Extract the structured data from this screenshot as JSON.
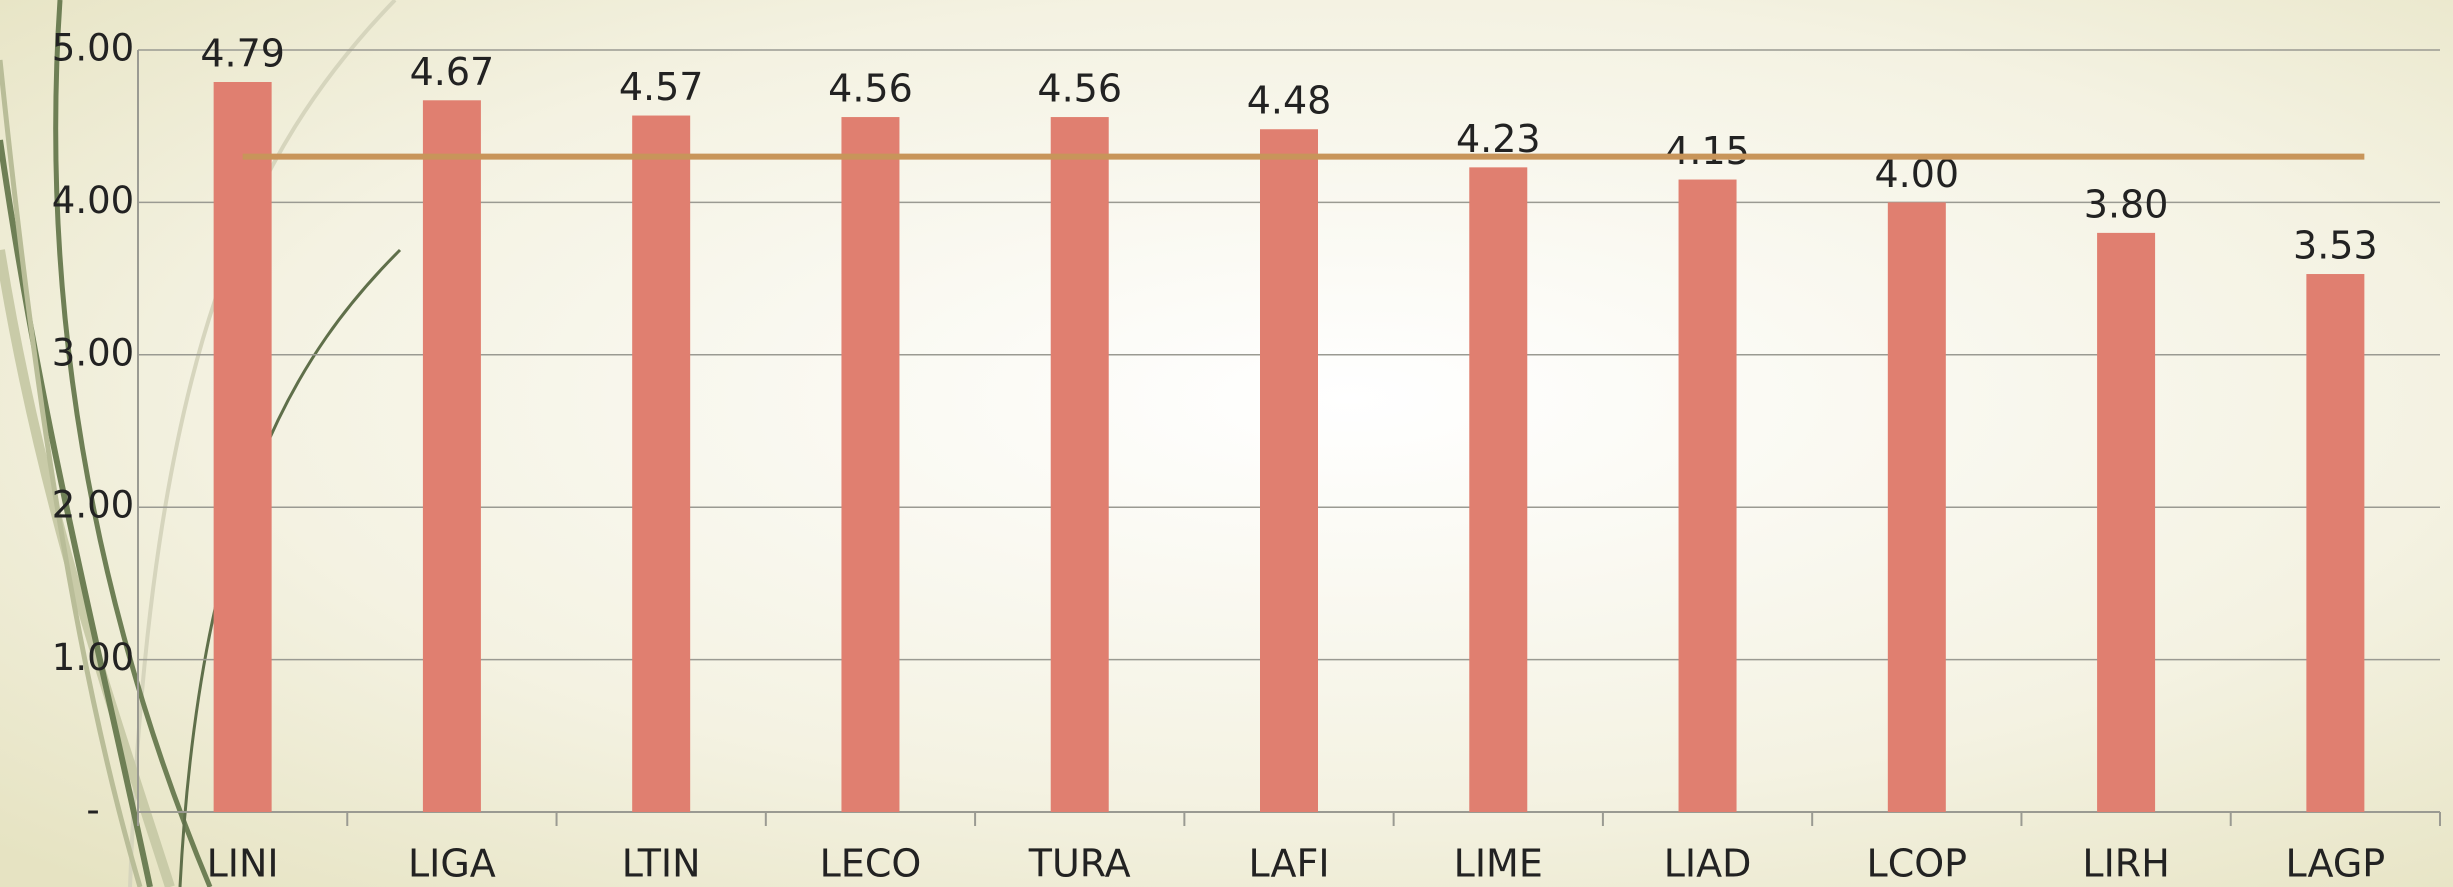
{
  "chart_data": {
    "type": "bar",
    "categories": [
      "LINI",
      "LIGA",
      "LTIN",
      "LECO",
      "TURA",
      "LAFI",
      "LIME",
      "LIAD",
      "LCOP",
      "LIRH",
      "LAGP"
    ],
    "values": [
      4.79,
      4.67,
      4.57,
      4.56,
      4.56,
      4.48,
      4.23,
      4.15,
      4.0,
      3.8,
      3.53
    ],
    "value_labels": [
      "4.79",
      "4.67",
      "4.57",
      "4.56",
      "4.56",
      "4.48",
      "4.23",
      "4.15",
      "4.00",
      "3.80",
      "3.53"
    ],
    "color": "#e07f70",
    "reference_line": 4.3,
    "reference_color": "#c8955a",
    "ylim": [
      0,
      5
    ],
    "yticks": [
      {
        "value": 0,
        "label": "-"
      },
      {
        "value": 1,
        "label": "1.00"
      },
      {
        "value": 2,
        "label": "2.00"
      },
      {
        "value": 3,
        "label": "3.00"
      },
      {
        "value": 4,
        "label": "4.00"
      },
      {
        "value": 5,
        "label": "5.00"
      }
    ],
    "grid": true
  }
}
